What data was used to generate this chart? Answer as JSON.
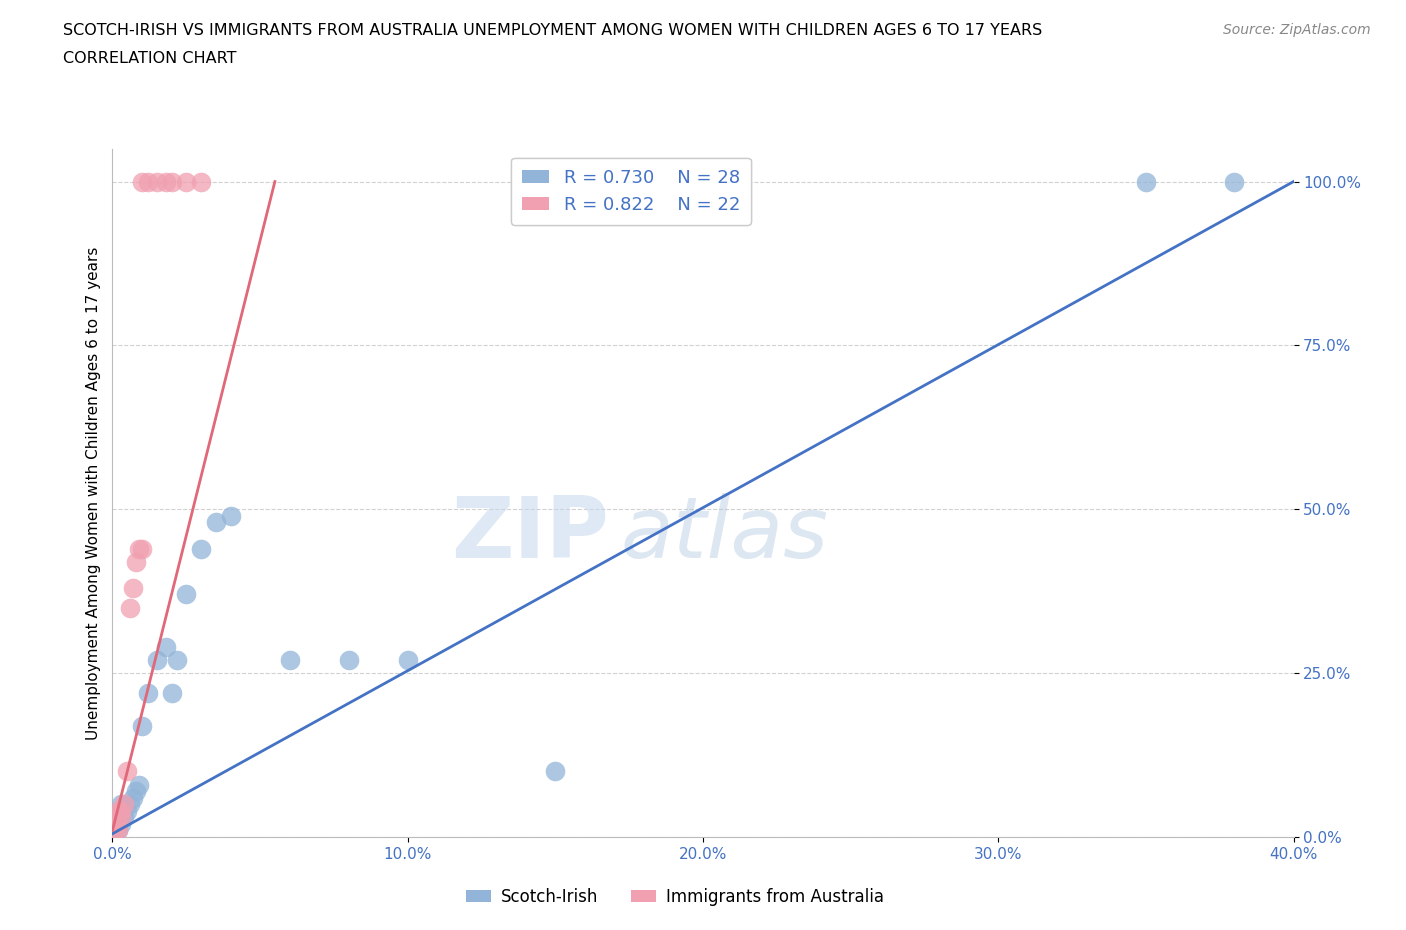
{
  "title_line1": "SCOTCH-IRISH VS IMMIGRANTS FROM AUSTRALIA UNEMPLOYMENT AMONG WOMEN WITH CHILDREN AGES 6 TO 17 YEARS",
  "title_line2": "CORRELATION CHART",
  "source_text": "Source: ZipAtlas.com",
  "ylabel": "Unemployment Among Women with Children Ages 6 to 17 years",
  "watermark_zip": "ZIP",
  "watermark_atlas": "atlas",
  "scotch_irish_x": [
    0.001,
    0.001,
    0.002,
    0.002,
    0.003,
    0.003,
    0.004,
    0.005,
    0.006,
    0.007,
    0.008,
    0.009,
    0.01,
    0.012,
    0.015,
    0.018,
    0.02,
    0.022,
    0.025,
    0.03,
    0.035,
    0.04,
    0.06,
    0.08,
    0.1,
    0.15,
    0.35,
    0.38
  ],
  "scotch_irish_y": [
    0.01,
    0.02,
    0.01,
    0.03,
    0.02,
    0.05,
    0.03,
    0.04,
    0.05,
    0.06,
    0.07,
    0.08,
    0.17,
    0.22,
    0.27,
    0.29,
    0.22,
    0.27,
    0.37,
    0.44,
    0.48,
    0.49,
    0.27,
    0.27,
    0.27,
    0.1,
    1.0,
    1.0
  ],
  "australia_x": [
    0.001,
    0.001,
    0.001,
    0.002,
    0.002,
    0.002,
    0.003,
    0.003,
    0.004,
    0.005,
    0.006,
    0.007,
    0.008,
    0.009,
    0.01,
    0.012,
    0.015,
    0.018,
    0.02,
    0.025,
    0.03,
    0.01
  ],
  "australia_y": [
    0.01,
    0.02,
    0.03,
    0.01,
    0.02,
    0.04,
    0.03,
    0.04,
    0.05,
    0.1,
    0.35,
    0.38,
    0.42,
    0.44,
    1.0,
    1.0,
    1.0,
    1.0,
    1.0,
    1.0,
    1.0,
    0.44
  ],
  "scotch_irish_R": 0.73,
  "scotch_irish_N": 28,
  "australia_R": 0.822,
  "australia_N": 22,
  "scotch_irish_color": "#92b4d8",
  "australia_color": "#f0a0b0",
  "scotch_irish_line_color": "#4472c4",
  "australia_line_color": "#e06878",
  "xmin": 0.0,
  "xmax": 0.4,
  "ymin": 0.0,
  "ymax": 1.05,
  "xtick_labels": [
    "0.0%",
    "10.0%",
    "20.0%",
    "30.0%",
    "40.0%"
  ],
  "xtick_values": [
    0.0,
    0.1,
    0.2,
    0.3,
    0.4
  ],
  "ytick_labels": [
    "0.0%",
    "25.0%",
    "50.0%",
    "75.0%",
    "100.0%"
  ],
  "ytick_values": [
    0.0,
    0.25,
    0.5,
    0.75,
    1.0
  ],
  "blue_line_x0": 0.0,
  "blue_line_y0": 0.005,
  "blue_line_x1": 0.4,
  "blue_line_y1": 1.0,
  "pink_line_x0": 0.0,
  "pink_line_y0": 0.01,
  "pink_line_x1": 0.055,
  "pink_line_y1": 1.0,
  "background_color": "#ffffff",
  "grid_color": "#cccccc"
}
